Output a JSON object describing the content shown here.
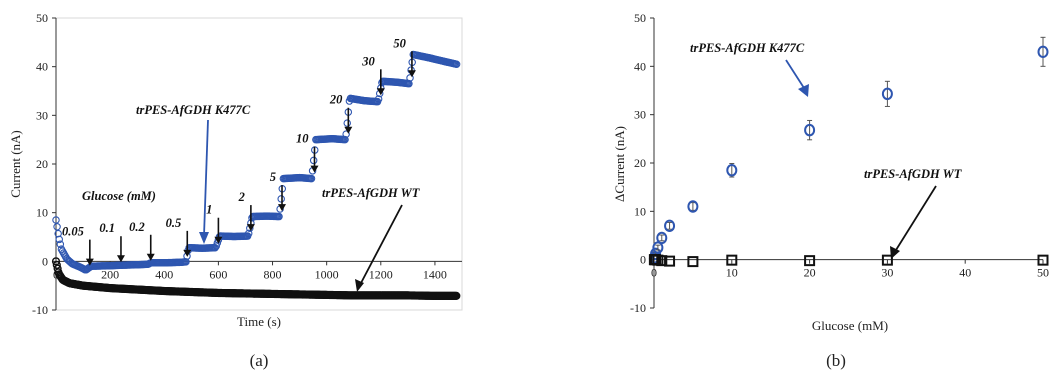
{
  "chart_data": [
    {
      "type": "scatter",
      "panel_label": "(a)",
      "xlabel": "Time (s)",
      "ylabel": "Current (nA)",
      "xlim": [
        0,
        1500
      ],
      "ylim": [
        -10,
        50
      ],
      "xticks": [
        "0",
        "200",
        "400",
        "600",
        "800",
        "1000",
        "1200",
        "1400"
      ],
      "yticks": [
        "-10",
        "0",
        "10",
        "20",
        "30",
        "40",
        "50"
      ],
      "grid": false,
      "annotation_heading": "Glucose (mM)",
      "series": [
        {
          "name": "trPES-AfGDH K477C",
          "color": "#2e56b0",
          "points": [
            [
              0,
              8.5
            ],
            [
              10,
              5
            ],
            [
              20,
              2.5
            ],
            [
              40,
              0.5
            ],
            [
              60,
              -0.5
            ],
            [
              90,
              -1.2
            ],
            [
              110,
              -1.8
            ],
            [
              130,
              -1.0
            ],
            [
              200,
              -0.9
            ],
            [
              240,
              -0.8
            ],
            [
              300,
              -0.7
            ],
            [
              340,
              -0.6
            ],
            [
              350,
              -0.3
            ],
            [
              400,
              -0.3
            ],
            [
              460,
              -0.2
            ],
            [
              480,
              -0.1
            ],
            [
              490,
              2.8
            ],
            [
              540,
              2.7
            ],
            [
              590,
              2.8
            ],
            [
              605,
              5.2
            ],
            [
              660,
              5.1
            ],
            [
              710,
              5.2
            ],
            [
              725,
              9.2
            ],
            [
              780,
              9.3
            ],
            [
              825,
              9.2
            ],
            [
              840,
              17.0
            ],
            [
              900,
              17.2
            ],
            [
              945,
              17.0
            ],
            [
              960,
              25.0
            ],
            [
              1020,
              25.2
            ],
            [
              1070,
              25.0
            ],
            [
              1085,
              33.5
            ],
            [
              1140,
              33.0
            ],
            [
              1190,
              32.8
            ],
            [
              1205,
              37.0
            ],
            [
              1260,
              36.8
            ],
            [
              1305,
              36.5
            ],
            [
              1320,
              42.5
            ],
            [
              1380,
              41.8
            ],
            [
              1440,
              41.0
            ],
            [
              1480,
              40.5
            ]
          ]
        },
        {
          "name": "trPES-AfGDH WT",
          "color": "#111111",
          "points": [
            [
              0,
              0
            ],
            [
              10,
              -2.5
            ],
            [
              25,
              -3.8
            ],
            [
              50,
              -4.5
            ],
            [
              100,
              -5.0
            ],
            [
              200,
              -5.5
            ],
            [
              300,
              -5.8
            ],
            [
              400,
              -6.1
            ],
            [
              500,
              -6.3
            ],
            [
              600,
              -6.5
            ],
            [
              700,
              -6.6
            ],
            [
              800,
              -6.7
            ],
            [
              900,
              -6.8
            ],
            [
              1000,
              -6.9
            ],
            [
              1100,
              -7.0
            ],
            [
              1200,
              -7.0
            ],
            [
              1300,
              -7.0
            ],
            [
              1400,
              -7.1
            ],
            [
              1480,
              -7.1
            ]
          ]
        }
      ],
      "annotations": [
        {
          "text": "0.05",
          "x": 125,
          "y": -1.5
        },
        {
          "text": "0.1",
          "x": 240,
          "y": -0.8
        },
        {
          "text": "0.2",
          "x": 350,
          "y": -0.5
        },
        {
          "text": "0.5",
          "x": 485,
          "y": 0.3
        },
        {
          "text": "1",
          "x": 600,
          "y": 3.0
        },
        {
          "text": "2",
          "x": 720,
          "y": 5.6
        },
        {
          "text": "5",
          "x": 835,
          "y": 9.7
        },
        {
          "text": "10",
          "x": 955,
          "y": 17.6
        },
        {
          "text": "20",
          "x": 1080,
          "y": 25.6
        },
        {
          "text": "30",
          "x": 1200,
          "y": 33.5
        },
        {
          "text": "50",
          "x": 1315,
          "y": 37.2
        }
      ]
    },
    {
      "type": "scatter",
      "panel_label": "(b)",
      "xlabel": "Glucose (mM)",
      "ylabel": "ΔCurrent (nA)",
      "xlim": [
        0,
        50
      ],
      "ylim": [
        -10,
        50
      ],
      "xticks": [
        "0",
        "10",
        "20",
        "30",
        "40",
        "50"
      ],
      "yticks": [
        "-10",
        "0",
        "10",
        "20",
        "30",
        "40",
        "50"
      ],
      "grid": false,
      "series": [
        {
          "name": "trPES-AfGDH K477C",
          "color": "#2e56b0",
          "marker": "circle",
          "points": [
            {
              "x": 0.05,
              "y": 0.2,
              "err": 0.3
            },
            {
              "x": 0.1,
              "y": 0.5,
              "err": 0.3
            },
            {
              "x": 0.2,
              "y": 1.2,
              "err": 0.4
            },
            {
              "x": 0.5,
              "y": 2.5,
              "err": 0.5
            },
            {
              "x": 1,
              "y": 4.5,
              "err": 0.6
            },
            {
              "x": 2,
              "y": 7.0,
              "err": 0.7
            },
            {
              "x": 5,
              "y": 11.0,
              "err": 0.8
            },
            {
              "x": 10,
              "y": 18.5,
              "err": 1.4
            },
            {
              "x": 20,
              "y": 26.8,
              "err": 2.0
            },
            {
              "x": 30,
              "y": 34.3,
              "err": 2.6
            },
            {
              "x": 50,
              "y": 43.0,
              "err": 3.0
            }
          ]
        },
        {
          "name": "trPES-AfGDH WT",
          "color": "#111111",
          "marker": "square",
          "points": [
            {
              "x": 0.05,
              "y": 0,
              "err": 0
            },
            {
              "x": 0.1,
              "y": 0,
              "err": 0
            },
            {
              "x": 0.2,
              "y": 0,
              "err": 0
            },
            {
              "x": 0.5,
              "y": -0.1,
              "err": 0
            },
            {
              "x": 1,
              "y": -0.2,
              "err": 0
            },
            {
              "x": 2,
              "y": -0.3,
              "err": 0
            },
            {
              "x": 5,
              "y": -0.4,
              "err": 0
            },
            {
              "x": 10,
              "y": -0.1,
              "err": 0
            },
            {
              "x": 20,
              "y": -0.2,
              "err": 0
            },
            {
              "x": 30,
              "y": -0.1,
              "err": 0
            },
            {
              "x": 50,
              "y": -0.1,
              "err": 0
            }
          ]
        }
      ]
    }
  ]
}
